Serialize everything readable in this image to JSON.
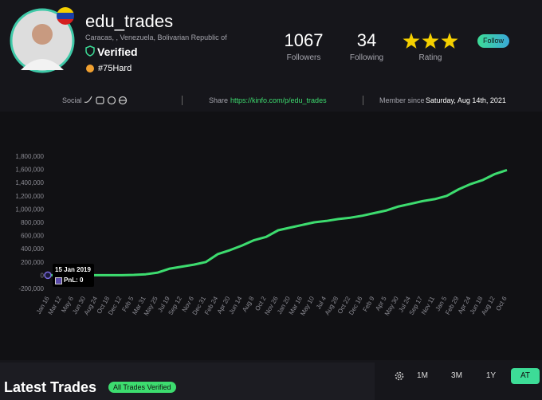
{
  "profile": {
    "name": "edu_trades",
    "location": "Caracas, , Venezuela, Bolivarian Republic of",
    "verified": "Verified",
    "tag": "#75Hard"
  },
  "stats": [
    {
      "value": 1067,
      "label": "Followers"
    },
    {
      "value": 34,
      "label": "Following"
    }
  ],
  "rating": {
    "label": "Rating",
    "value": 3
  },
  "follow_button": "Follow",
  "info_bar": {
    "social_label": "Social",
    "share_label": "Share",
    "share_url": "https://kinfo.com/p/edu_trades",
    "member_label": "Member since",
    "member_date": "Saturday, Aug 14th, 2021"
  },
  "chart_data": {
    "type": "line",
    "categories": [
      "Jan 16",
      "Mar 12",
      "May 6",
      "Jun 30",
      "Aug 24",
      "Oct 18",
      "Dec 12",
      "Feb 5",
      "Mar 31",
      "May 25",
      "Jul 19",
      "Sep 12",
      "Nov 6",
      "Dec 31",
      "Feb 24",
      "Apr 20",
      "Jun 14",
      "Aug 8",
      "Oct 2",
      "Nov 26",
      "Jan 20",
      "Mar 16",
      "May 10",
      "Jul 4",
      "Aug 28",
      "Oct 22",
      "Dec 16",
      "Feb 9",
      "Apr 5",
      "May 30",
      "Jul 24",
      "Sep 17",
      "Nov 11",
      "Jan 5",
      "Feb 29",
      "Apr 24",
      "Jun 18",
      "Aug 12",
      "Oct 6"
    ],
    "series": [
      {
        "color": "#3ddc6f",
        "values": [
          0,
          0,
          0,
          0,
          0,
          0,
          0,
          5000,
          15000,
          40000,
          100000,
          130000,
          160000,
          200000,
          320000,
          380000,
          450000,
          530000,
          580000,
          680000,
          720000,
          760000,
          800000,
          820000,
          850000,
          870000,
          900000,
          940000,
          980000,
          1040000,
          1080000,
          1120000,
          1150000,
          1200000,
          1300000,
          1380000,
          1440000,
          1530000,
          1590000
        ]
      }
    ],
    "ylim": [
      -200000,
      1800000
    ],
    "yticks": [
      {
        "value": -200000,
        "label": "-200,000"
      },
      0,
      {
        "value": 200000,
        "label": "200,000"
      },
      {
        "value": 400000,
        "label": "400,000"
      },
      {
        "value": 600000,
        "label": "600,000"
      },
      {
        "value": 800000,
        "label": "800,000"
      },
      {
        "value": 1000000,
        "label": "1,000,000"
      },
      {
        "value": 1200000,
        "label": "1,200,000"
      },
      {
        "value": 1400000,
        "label": "1,400,000"
      },
      {
        "value": 1600000,
        "label": "1,600,000"
      },
      {
        "value": 1800000,
        "label": "1,800,000"
      }
    ],
    "tooltip": {
      "date": "15 Jan 2019",
      "text": "PnL: 0"
    }
  },
  "trades": {
    "title": "Latest Trades",
    "badge": "All Trades Verified",
    "ranges": [
      "1M",
      "3M",
      "1Y",
      "AT"
    ],
    "active_range": "AT"
  }
}
